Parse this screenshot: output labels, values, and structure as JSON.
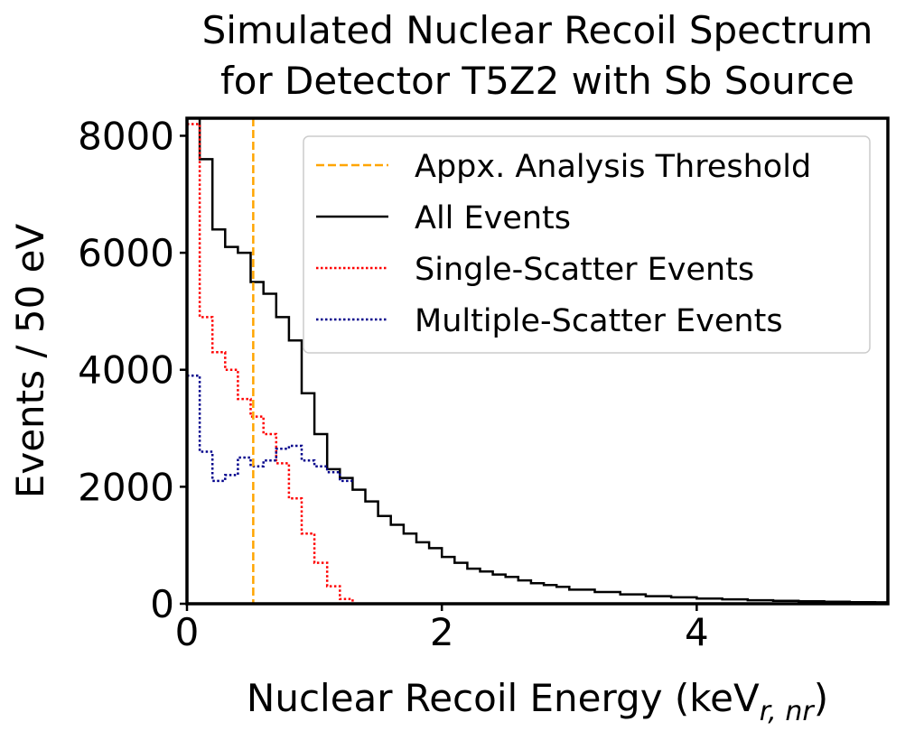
{
  "colors": {
    "threshold": "#FFA500",
    "all": "#000000",
    "single": "#FF0000",
    "multiple": "#00008B"
  },
  "chart_data": {
    "type": "line",
    "title": [
      "Simulated Nuclear Recoil Spectrum",
      "for Detector T5Z2 with Sb Source"
    ],
    "xlabel": "Nuclear Recoil Energy (keV",
    "xlabel_subscript": "r, nr",
    "xlabel_suffix": ")",
    "ylabel": "Events / 50 eV",
    "xlim": [
      0,
      5.5
    ],
    "ylim": [
      0,
      8300
    ],
    "xticks": [
      0,
      2,
      4
    ],
    "xtick_labels": [
      "0",
      "2",
      "4"
    ],
    "yticks": [
      0,
      2000,
      4000,
      6000,
      8000
    ],
    "ytick_labels": [
      "0",
      "2000",
      "4000",
      "6000",
      "8000"
    ],
    "grid": false,
    "legend_position": "upper-right",
    "bin_width": 0.1,
    "threshold": {
      "name": "Appx. Analysis Threshold",
      "x": 0.52
    },
    "series": [
      {
        "name": "All Events",
        "style": "solid",
        "x": [
          0,
          0.1,
          0.2,
          0.3,
          0.4,
          0.5,
          0.6,
          0.7,
          0.8,
          0.9,
          1.0,
          1.1,
          1.2,
          1.3,
          1.4,
          1.5,
          1.6,
          1.7,
          1.8,
          1.9,
          2.0,
          2.1,
          2.2,
          2.3,
          2.4,
          2.5,
          2.6,
          2.7,
          2.8,
          2.9,
          3.0,
          3.2,
          3.4,
          3.6,
          3.8,
          4.0,
          4.2,
          4.4,
          4.6,
          4.8,
          5.0,
          5.2,
          5.4
        ],
        "values": [
          8300,
          7600,
          6400,
          6100,
          6000,
          5500,
          5300,
          4900,
          4500,
          3600,
          2900,
          2300,
          2150,
          1950,
          1750,
          1500,
          1350,
          1200,
          1050,
          950,
          800,
          700,
          600,
          550,
          500,
          460,
          400,
          350,
          320,
          290,
          240,
          200,
          160,
          130,
          110,
          90,
          75,
          60,
          50,
          42,
          35,
          28,
          25
        ]
      },
      {
        "name": "Single-Scatter Events",
        "style": "dotted",
        "x": [
          0,
          0.1,
          0.2,
          0.3,
          0.4,
          0.5,
          0.6,
          0.7,
          0.8,
          0.9,
          1.0,
          1.1,
          1.2,
          1.3
        ],
        "values": [
          8200,
          4900,
          4300,
          4000,
          3500,
          3200,
          2900,
          2400,
          1800,
          1200,
          700,
          300,
          80,
          0
        ]
      },
      {
        "name": "Multiple-Scatter Events",
        "style": "dotted",
        "x": [
          0,
          0.1,
          0.2,
          0.3,
          0.4,
          0.5,
          0.6,
          0.7,
          0.8,
          0.9,
          1.0,
          1.1,
          1.2
        ],
        "values": [
          3900,
          2600,
          2100,
          2200,
          2500,
          2350,
          2450,
          2650,
          2700,
          2450,
          2350,
          2250,
          2100
        ]
      }
    ]
  }
}
